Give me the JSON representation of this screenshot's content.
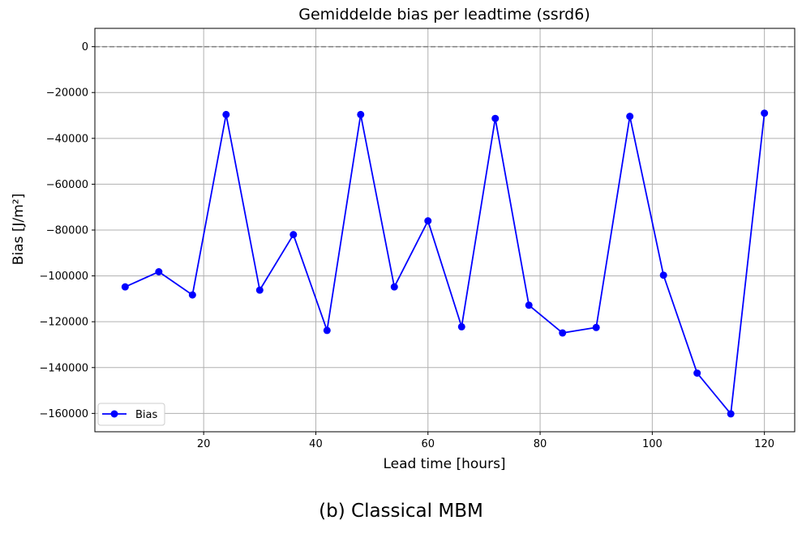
{
  "chart_data": {
    "type": "line",
    "title": "Gemiddelde bias per leadtime (ssrd6)",
    "xlabel": "Lead time [hours]",
    "ylabel": "Bias [J/m²]",
    "xlim": [
      0.6,
      125.4
    ],
    "ylim": [
      -168000,
      8000
    ],
    "xticks": [
      20,
      40,
      60,
      80,
      100,
      120
    ],
    "yticks": [
      0,
      -20000,
      -40000,
      -60000,
      -80000,
      -100000,
      -120000,
      -140000,
      -160000
    ],
    "grid": true,
    "reference_line": {
      "y": 0,
      "style": "dashed",
      "color": "#808080"
    },
    "legend": {
      "location": "lower-left"
    },
    "series": [
      {
        "name": "Bias",
        "color": "#0000ff",
        "marker": "circle",
        "x": [
          6,
          12,
          18,
          24,
          30,
          36,
          42,
          48,
          54,
          60,
          66,
          72,
          78,
          84,
          90,
          96,
          102,
          108,
          114,
          120
        ],
        "y": [
          -104800,
          -98200,
          -108300,
          -29600,
          -106200,
          -82000,
          -123800,
          -29600,
          -104800,
          -76000,
          -122200,
          -31300,
          -112800,
          -124900,
          -122500,
          -30400,
          -99700,
          -142400,
          -160200,
          -29000
        ]
      }
    ]
  },
  "caption": "(b) Classical MBM"
}
